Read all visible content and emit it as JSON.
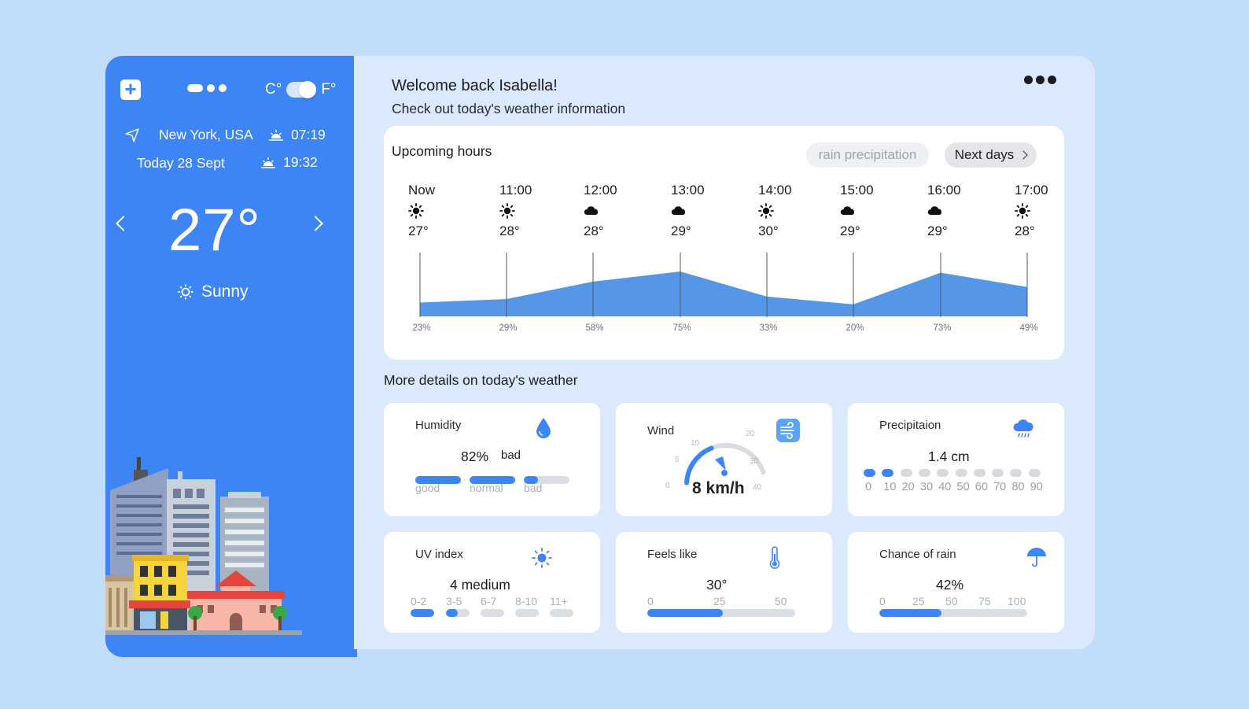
{
  "sidebar": {
    "unit_c": "C°",
    "unit_f": "F°",
    "location": "New York, USA",
    "date": "Today 28 Sept",
    "sunrise": "07:19",
    "sunset": "19:32",
    "temperature": "27°",
    "condition": "Sunny"
  },
  "header": {
    "welcome": "Welcome back Isabella!",
    "subtitle": "Check out today's weather information"
  },
  "hours": {
    "title": "Upcoming hours",
    "rain_button": "rain precipitation",
    "next_button": "Next days",
    "items": [
      {
        "time": "Now",
        "icon": "sun-icon",
        "temp": "27°",
        "precip": "23%"
      },
      {
        "time": "11:00",
        "icon": "sun-icon",
        "temp": "28°",
        "precip": "29%"
      },
      {
        "time": "12:00",
        "icon": "cloud-icon",
        "temp": "28°",
        "precip": "58%"
      },
      {
        "time": "13:00",
        "icon": "cloud-icon",
        "temp": "29°",
        "precip": "75%"
      },
      {
        "time": "14:00",
        "icon": "sun-icon",
        "temp": "30°",
        "precip": "33%"
      },
      {
        "time": "15:00",
        "icon": "cloud-icon",
        "temp": "29°",
        "precip": "20%"
      },
      {
        "time": "16:00",
        "icon": "cloud-icon",
        "temp": "29°",
        "precip": "73%"
      },
      {
        "time": "17:00",
        "icon": "sun-icon",
        "temp": "28°",
        "precip": "49%"
      }
    ]
  },
  "details": {
    "title": "More details on today's weather",
    "humidity": {
      "label": "Humidity",
      "value": "82%",
      "status": "bad",
      "scale": [
        "good",
        "normal",
        "bad"
      ],
      "level": 0.82
    },
    "wind": {
      "label": "Wind",
      "value": "8 km/h",
      "ticks": [
        "0",
        "5",
        "10",
        "20",
        "30",
        "40"
      ],
      "speed": 8
    },
    "precipitation": {
      "label": "Precipitaion",
      "value": "1.4 cm",
      "ticks": [
        "0",
        "10",
        "20",
        "30",
        "40",
        "50",
        "60",
        "70",
        "80",
        "90"
      ],
      "filled": 2
    },
    "uv": {
      "label": "UV index",
      "value": "4 medium",
      "ticks": [
        "0-2",
        "3-5",
        "6-7",
        "8-10",
        "11+"
      ],
      "level": 4
    },
    "feels": {
      "label": "Feels like",
      "value": "30°",
      "ticks": [
        "0",
        "25",
        "50"
      ],
      "level": 30,
      "max": 50
    },
    "rain": {
      "label": "Chance of rain",
      "value": "42%",
      "ticks": [
        "0",
        "25",
        "50",
        "75",
        "100"
      ],
      "level": 42,
      "max": 100
    }
  },
  "colors": {
    "accent": "#3d84f5",
    "background": "#c2dcfc",
    "panel": "#dae9fd"
  }
}
